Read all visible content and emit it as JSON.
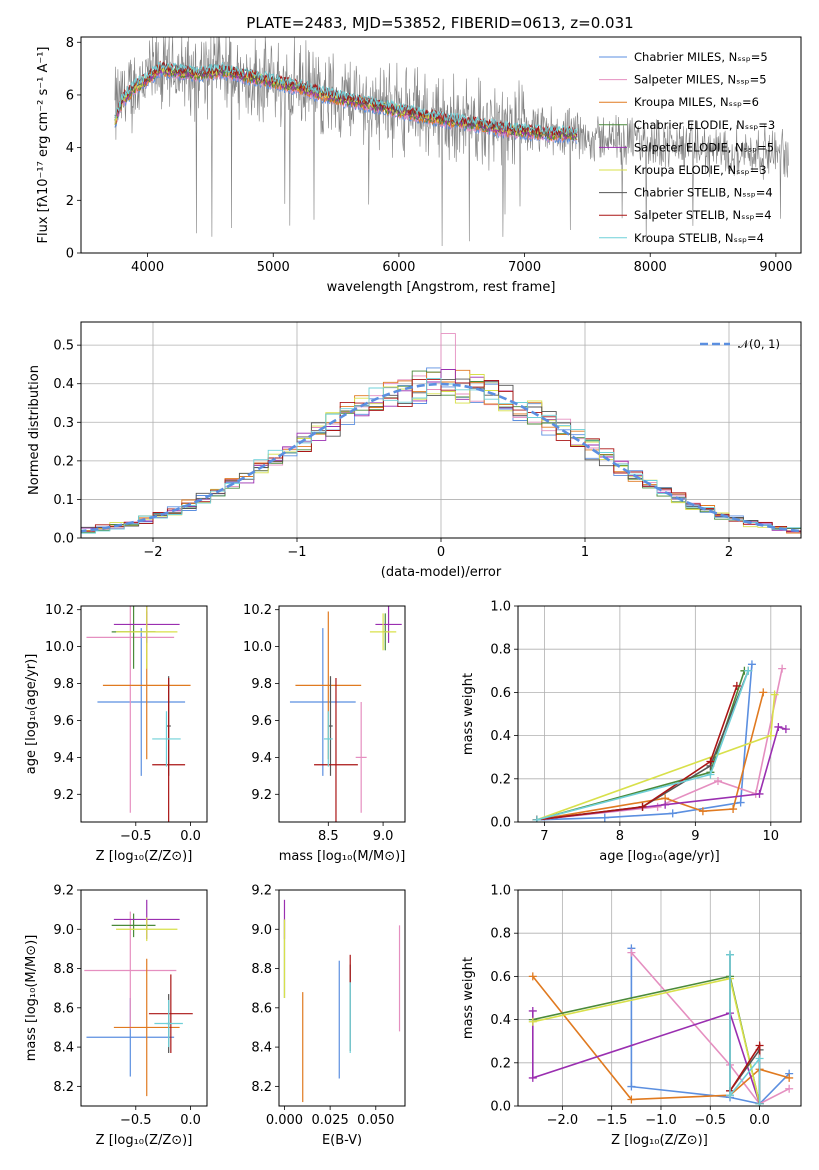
{
  "figure": {
    "title": "PLATE=2483, MJD=53852, FIBERID=0613, z=0.031",
    "colors": {
      "Chabrier MILES": "#5b8fe0",
      "Salpeter MILES": "#e58fc0",
      "Kroupa MILES": "#e07a20",
      "Chabrier ELODIE": "#4a8a3a",
      "Salpeter ELODIE": "#9a2fb0",
      "Kroupa ELODIE": "#d8e04a",
      "Chabrier STELIB": "#555555",
      "Salpeter STELIB": "#aa1515",
      "Kroupa STELIB": "#6fd0d8",
      "data": "#808080",
      "gaussian": "#5b8fe0"
    }
  },
  "chart_data": [
    {
      "id": "spectrum",
      "type": "line",
      "xlabel": "wavelength [Angstrom, rest frame]",
      "ylabel": "Flux [fλ10⁻¹⁷ erg cm⁻² s⁻¹ A⁻¹]",
      "xlim": [
        3470,
        9200
      ],
      "ylim": [
        0,
        8.2
      ],
      "xticks": [
        4000,
        5000,
        6000,
        7000,
        8000,
        9000
      ],
      "yticks": [
        0,
        2,
        4,
        6,
        8
      ],
      "grid": false,
      "legend_position": "top-right",
      "legend": [
        "Chabrier MILES, Nₛₛₚ=5",
        "Salpeter MILES, Nₛₛₚ=5",
        "Kroupa MILES, Nₛₛₚ=6",
        "Chabrier ELODIE, Nₛₛₚ=3",
        "Salpeter ELODIE, Nₛₛₚ=5",
        "Kroupa ELODIE, Nₛₛₚ=3",
        "Chabrier STELIB, Nₛₛₚ=4",
        "Salpeter STELIB, Nₛₛₚ=4",
        "Kroupa STELIB, Nₛₛₚ=4"
      ],
      "continuum": {
        "x": [
          3740,
          3800,
          3900,
          4000,
          4100,
          4200,
          4400,
          4600,
          4800,
          5000,
          5200,
          5400,
          5600,
          5800,
          6000,
          6200,
          6400,
          6600,
          6800,
          7000,
          7200,
          7420
        ],
        "y": [
          5.0,
          5.8,
          6.3,
          6.6,
          7.0,
          6.9,
          6.8,
          6.9,
          6.7,
          6.5,
          6.3,
          6.0,
          5.8,
          5.6,
          5.4,
          5.2,
          5.0,
          4.9,
          4.7,
          4.6,
          4.5,
          4.5
        ]
      },
      "data_continuum": {
        "x": [
          3740,
          4000,
          4500,
          5000,
          5500,
          6000,
          6500,
          7000,
          7500,
          8000,
          8500,
          9000,
          9100
        ],
        "y": [
          5.5,
          6.8,
          6.9,
          6.5,
          6.0,
          5.5,
          5.0,
          4.7,
          4.4,
          4.2,
          3.9,
          3.8,
          3.7
        ]
      }
    },
    {
      "id": "residuals",
      "type": "line",
      "xlabel": "(data-model)/error",
      "ylabel": "Normed distribution",
      "xlim": [
        -2.5,
        2.5
      ],
      "ylim": [
        0,
        0.56
      ],
      "xticks": [
        -2,
        -1,
        0,
        1,
        2
      ],
      "yticks": [
        0.0,
        0.1,
        0.2,
        0.3,
        0.4,
        0.5
      ],
      "grid": true,
      "legend_position": "top-right",
      "legend": [
        "𝒩(0, 1)"
      ],
      "gaussian": {
        "mu": 0,
        "sigma": 1
      }
    },
    {
      "id": "age-vs-Z",
      "type": "scatter",
      "xlabel": "Z [log₁₀(Z/Z⊙)]",
      "ylabel": "age  [log₁₀(age/yr)]",
      "xlim": [
        -1.0,
        0.15
      ],
      "ylim": [
        9.05,
        10.22
      ],
      "xticks": [
        -0.5,
        0.0
      ],
      "yticks": [
        9.2,
        9.4,
        9.6,
        9.8,
        10.0,
        10.2
      ],
      "grid": false,
      "points": [
        {
          "series": "Chabrier MILES",
          "x": -0.45,
          "xerr": 0.4,
          "y": 9.7,
          "yerr": 0.4
        },
        {
          "series": "Salpeter MILES",
          "x": -0.55,
          "xerr": 0.4,
          "y": 10.05,
          "yerr": 0.95
        },
        {
          "series": "Kroupa MILES",
          "x": -0.4,
          "xerr": 0.4,
          "y": 9.79,
          "yerr": 0.4
        },
        {
          "series": "Chabrier ELODIE",
          "x": -0.52,
          "xerr": 0.2,
          "y": 10.08,
          "yerr": 0.2
        },
        {
          "series": "Salpeter ELODIE",
          "x": -0.4,
          "xerr": 0.3,
          "y": 10.12,
          "yerr": 0.1
        },
        {
          "series": "Kroupa ELODIE",
          "x": -0.4,
          "xerr": 0.28,
          "y": 10.08,
          "yerr": 0.2
        },
        {
          "series": "Chabrier STELIB",
          "x": -0.2,
          "xerr": 0.02,
          "y": 9.57,
          "yerr": 0.27
        },
        {
          "series": "Salpeter STELIB",
          "x": -0.2,
          "xerr": 0.15,
          "y": 9.36,
          "yerr": 0.47
        },
        {
          "series": "Kroupa STELIB",
          "x": -0.22,
          "xerr": 0.13,
          "y": 9.5,
          "yerr": 0.15
        }
      ]
    },
    {
      "id": "age-vs-mass",
      "type": "scatter",
      "xlabel": "mass [log₁₀(M/M⊙)]",
      "ylabel": "",
      "xlim": [
        8.05,
        9.2
      ],
      "ylim": [
        9.05,
        10.22
      ],
      "xticks": [
        8.5,
        9.0
      ],
      "yticks": [
        9.2,
        9.4,
        9.6,
        9.8,
        10.0,
        10.2
      ],
      "grid": false,
      "points": [
        {
          "series": "Chabrier MILES",
          "x": 8.45,
          "xerr": 0.3,
          "y": 9.7,
          "yerr": 0.4
        },
        {
          "series": "Salpeter MILES",
          "x": 8.8,
          "xerr": 0.05,
          "y": 9.4,
          "yerr": 0.3
        },
        {
          "series": "Kroupa MILES",
          "x": 8.5,
          "xerr": 0.3,
          "y": 9.79,
          "yerr": 0.4
        },
        {
          "series": "Chabrier ELODIE",
          "x": 9.02,
          "xerr": 0.02,
          "y": 10.08,
          "yerr": 0.1
        },
        {
          "series": "Salpeter ELODIE",
          "x": 9.05,
          "xerr": 0.12,
          "y": 10.12,
          "yerr": 0.1
        },
        {
          "series": "Kroupa ELODIE",
          "x": 9.0,
          "xerr": 0.12,
          "y": 10.08,
          "yerr": 0.1
        },
        {
          "series": "Chabrier STELIB",
          "x": 8.52,
          "xerr": 0.02,
          "y": 9.57,
          "yerr": 0.27
        },
        {
          "series": "Salpeter STELIB",
          "x": 8.57,
          "xerr": 0.2,
          "y": 9.36,
          "yerr": 0.47
        },
        {
          "series": "Kroupa STELIB",
          "x": 8.5,
          "xerr": 0.04,
          "y": 9.5,
          "yerr": 0.15
        }
      ]
    },
    {
      "id": "weight-vs-age",
      "type": "line",
      "xlabel": "age  [log₁₀(age/yr)]",
      "ylabel": "mass weight",
      "xlim": [
        6.65,
        10.4
      ],
      "ylim": [
        0,
        1.0
      ],
      "xticks": [
        7,
        8,
        9,
        10
      ],
      "yticks": [
        0.0,
        0.2,
        0.4,
        0.6,
        0.8,
        1.0
      ],
      "grid": true,
      "series": [
        {
          "name": "Chabrier MILES",
          "x": [
            6.9,
            7.8,
            8.7,
            9.6,
            9.75
          ],
          "y": [
            0.01,
            0.02,
            0.04,
            0.09,
            0.73
          ]
        },
        {
          "name": "Salpeter MILES",
          "x": [
            6.9,
            8.5,
            9.3,
            9.8,
            10.15
          ],
          "y": [
            0.01,
            0.07,
            0.19,
            0.13,
            0.71
          ]
        },
        {
          "name": "Kroupa MILES",
          "x": [
            6.9,
            8.6,
            9.1,
            9.5,
            9.9
          ],
          "y": [
            0.01,
            0.11,
            0.05,
            0.06,
            0.6
          ]
        },
        {
          "name": "Chabrier ELODIE",
          "x": [
            6.9,
            9.2,
            9.65
          ],
          "y": [
            0.01,
            0.23,
            0.7
          ]
        },
        {
          "name": "Salpeter ELODIE",
          "x": [
            6.9,
            8.6,
            9.85,
            10.1,
            10.2
          ],
          "y": [
            0.01,
            0.08,
            0.13,
            0.44,
            0.43
          ]
        },
        {
          "name": "Kroupa ELODIE",
          "x": [
            6.9,
            10.0,
            10.05
          ],
          "y": [
            0.01,
            0.4,
            0.59
          ]
        },
        {
          "name": "Chabrier STELIB",
          "x": [
            6.9,
            8.3,
            9.2,
            9.7
          ],
          "y": [
            0.01,
            0.07,
            0.26,
            0.7
          ]
        },
        {
          "name": "Salpeter STELIB",
          "x": [
            6.9,
            8.3,
            9.2,
            9.55
          ],
          "y": [
            0.01,
            0.07,
            0.28,
            0.63
          ]
        },
        {
          "name": "Kroupa STELIB",
          "x": [
            6.9,
            9.2,
            9.7
          ],
          "y": [
            0.01,
            0.22,
            0.7
          ]
        }
      ]
    },
    {
      "id": "mass-vs-Z",
      "type": "scatter",
      "xlabel": "Z [log₁₀(Z/Z⊙)]",
      "ylabel": "mass [log₁₀(M/M⊙)]",
      "xlim": [
        -1.0,
        0.15
      ],
      "ylim": [
        8.1,
        9.2
      ],
      "xticks": [
        -0.5,
        0.0
      ],
      "yticks": [
        8.2,
        8.4,
        8.6,
        8.8,
        9.0,
        9.2
      ],
      "grid": false,
      "points": [
        {
          "series": "Chabrier MILES",
          "x": -0.55,
          "xerr": 0.4,
          "y": 8.45,
          "yerr": 0.2
        },
        {
          "series": "Salpeter MILES",
          "x": -0.55,
          "xerr": 0.42,
          "y": 8.79,
          "yerr": 0.3
        },
        {
          "series": "Kroupa MILES",
          "x": -0.4,
          "xerr": 0.3,
          "y": 8.5,
          "yerr": 0.35
        },
        {
          "series": "Chabrier ELODIE",
          "x": -0.52,
          "xerr": 0.2,
          "y": 9.02,
          "yerr": 0.06
        },
        {
          "series": "Salpeter ELODIE",
          "x": -0.4,
          "xerr": 0.3,
          "y": 9.05,
          "yerr": 0.1
        },
        {
          "series": "Kroupa ELODIE",
          "x": -0.4,
          "xerr": 0.28,
          "y": 9.0,
          "yerr": 0.06
        },
        {
          "series": "Chabrier STELIB",
          "x": -0.2,
          "xerr": 0.02,
          "y": 8.52,
          "yerr": 0.15
        },
        {
          "series": "Salpeter STELIB",
          "x": -0.18,
          "xerr": 0.2,
          "y": 8.57,
          "yerr": 0.2
        },
        {
          "series": "Kroupa STELIB",
          "x": -0.2,
          "xerr": 0.13,
          "y": 8.52,
          "yerr": 0.12
        }
      ]
    },
    {
      "id": "mass-vs-ebv",
      "type": "scatter",
      "xlabel": "E(B-V)",
      "ylabel": "",
      "xlim": [
        -0.003,
        0.066
      ],
      "ylim": [
        8.1,
        9.2
      ],
      "xticks": [
        0.0,
        0.025,
        0.05
      ],
      "yticks": [
        8.2,
        8.4,
        8.6,
        8.8,
        9.0,
        9.2
      ],
      "grid": false,
      "points": [
        {
          "series": "Chabrier MILES",
          "x": 0.03,
          "y": 8.54,
          "yerr": 0.3
        },
        {
          "series": "Salpeter MILES",
          "x": 0.063,
          "y": 8.75,
          "yerr": 0.27
        },
        {
          "series": "Kroupa MILES",
          "x": 0.01,
          "y": 8.4,
          "yerr": 0.28
        },
        {
          "series": "Chabrier ELODIE",
          "x": 0.0,
          "y": 8.85,
          "yerr": 0.2
        },
        {
          "series": "Salpeter ELODIE",
          "x": 0.0,
          "y": 9.05,
          "yerr": 0.1
        },
        {
          "series": "Kroupa ELODIE",
          "x": 0.0,
          "y": 8.85,
          "yerr": 0.2
        },
        {
          "series": "Chabrier STELIB",
          "x": 0.036,
          "y": 8.6,
          "yerr": 0.22
        },
        {
          "series": "Salpeter STELIB",
          "x": 0.036,
          "y": 8.8,
          "yerr": 0.07
        },
        {
          "series": "Kroupa STELIB",
          "x": 0.036,
          "y": 8.55,
          "yerr": 0.18
        }
      ]
    },
    {
      "id": "weight-vs-Z",
      "type": "line",
      "xlabel": "Z [log₁₀(Z/Z⊙)]",
      "ylabel": "mass weight",
      "xlim": [
        -2.45,
        0.42
      ],
      "ylim": [
        0,
        1.0
      ],
      "xticks": [
        -2.0,
        -1.5,
        -1.0,
        -0.5,
        0.0
      ],
      "yticks": [
        0.0,
        0.2,
        0.4,
        0.6,
        0.8,
        1.0
      ],
      "grid": true,
      "series": [
        {
          "name": "Chabrier MILES",
          "x": [
            -1.3,
            -1.3,
            -0.3,
            0.0,
            0.3
          ],
          "y": [
            0.73,
            0.09,
            0.04,
            0.01,
            0.15
          ]
        },
        {
          "name": "Salpeter MILES",
          "x": [
            -1.3,
            -0.3,
            0.0,
            0.3
          ],
          "y": [
            0.71,
            0.19,
            0.01,
            0.08
          ]
        },
        {
          "name": "Kroupa MILES",
          "x": [
            -2.3,
            -1.3,
            -0.3,
            0.0,
            0.3
          ],
          "y": [
            0.6,
            0.03,
            0.05,
            0.17,
            0.13
          ]
        },
        {
          "name": "Chabrier ELODIE",
          "x": [
            -2.3,
            -0.3,
            0.0
          ],
          "y": [
            0.4,
            0.6,
            0.01
          ]
        },
        {
          "name": "Salpeter ELODIE",
          "x": [
            -2.3,
            -2.3,
            -0.3,
            0.0
          ],
          "y": [
            0.44,
            0.13,
            0.43,
            0.01
          ]
        },
        {
          "name": "Kroupa ELODIE",
          "x": [
            -2.3,
            -0.3,
            0.0
          ],
          "y": [
            0.39,
            0.59,
            0.01
          ]
        },
        {
          "name": "Chabrier STELIB",
          "x": [
            -0.3,
            -0.3,
            0.0,
            0.0
          ],
          "y": [
            0.7,
            0.07,
            0.26,
            0.01
          ]
        },
        {
          "name": "Salpeter STELIB",
          "x": [
            -0.3,
            0.0,
            0.0
          ],
          "y": [
            0.07,
            0.28,
            0.01
          ]
        },
        {
          "name": "Kroupa STELIB",
          "x": [
            -0.3,
            -0.3,
            0.0,
            0.0
          ],
          "y": [
            0.7,
            0.05,
            0.22,
            0.01
          ]
        }
      ]
    }
  ]
}
